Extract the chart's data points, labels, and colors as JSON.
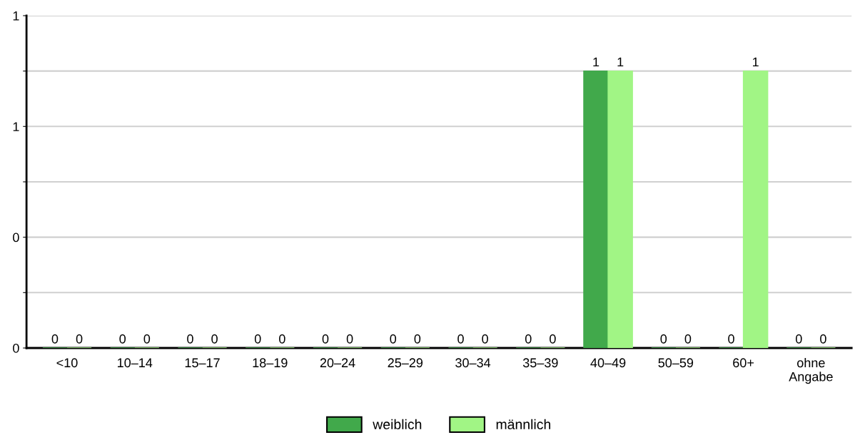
{
  "chart_data": {
    "type": "bar",
    "categories": [
      "<10",
      "10–14",
      "15–17",
      "18–19",
      "20–24",
      "25–29",
      "30–34",
      "35–39",
      "40–49",
      "50–59",
      "60+",
      "ohne\nAngabe"
    ],
    "series": [
      {
        "name": "weiblich",
        "color": "#41a94b",
        "values": [
          0,
          0,
          0,
          0,
          0,
          0,
          0,
          0,
          1,
          0,
          0,
          0
        ]
      },
      {
        "name": "männlich",
        "color": "#a1f585",
        "values": [
          0,
          0,
          0,
          0,
          0,
          0,
          0,
          0,
          1,
          0,
          1,
          0
        ]
      }
    ],
    "ylim": [
      0,
      1.2
    ],
    "yticks": [
      {
        "value": 0,
        "label": "0"
      },
      {
        "value": 0.2,
        "label": null
      },
      {
        "value": 0.4,
        "label": "0"
      },
      {
        "value": 0.6,
        "label": null
      },
      {
        "value": 0.8,
        "label": "1"
      },
      {
        "value": 1.0,
        "label": null
      },
      {
        "value": 1.2,
        "label": "1"
      }
    ],
    "grid": "y",
    "data_labels": true,
    "legend": "bottom"
  }
}
